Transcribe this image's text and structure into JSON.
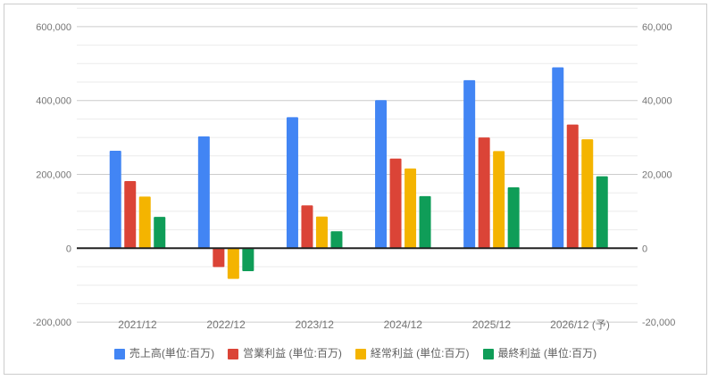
{
  "chart_data": {
    "type": "bar",
    "title": "",
    "categories": [
      "2021/12",
      "2022/12",
      "2023/12",
      "2024/12",
      "2025/12",
      "2026/12 (予)"
    ],
    "series": [
      {
        "name": "売上高(単位:百万)",
        "axis": "left",
        "color": "#4285f4",
        "values": [
          264000,
          303000,
          355000,
          401000,
          455000,
          490000
        ]
      },
      {
        "name": "営業利益 (単位:百万)",
        "axis": "right",
        "color": "#db4437",
        "values": [
          18200,
          -5100,
          11600,
          24300,
          30000,
          33500
        ]
      },
      {
        "name": "経常利益 (単位:百万)",
        "axis": "right",
        "color": "#f4b400",
        "values": [
          14000,
          -8300,
          8600,
          21600,
          26300,
          29500
        ]
      },
      {
        "name": "最終利益 (単位:百万)",
        "axis": "right",
        "color": "#0f9d58",
        "values": [
          8500,
          -6200,
          4600,
          14100,
          16500,
          19500
        ]
      }
    ],
    "left_axis": {
      "min": -200000,
      "max": 650000,
      "tick_values": [
        -200000,
        0,
        200000,
        400000,
        600000
      ],
      "tick_labels": [
        "-200,000",
        "0",
        "200,000",
        "400,000",
        "600,000"
      ],
      "minor_step": 50000
    },
    "right_axis": {
      "min": -20000,
      "max": 65000,
      "tick_values": [
        -20000,
        0,
        20000,
        40000,
        60000
      ],
      "tick_labels": [
        "-20,000",
        "0",
        "20,000",
        "40,000",
        "60,000"
      ]
    },
    "left_units_per_right_unit": 10,
    "grid": true,
    "legend_position": "bottom",
    "colors": {
      "background": "#ffffff",
      "panel_border": "#cccccc",
      "major_gridline": "#cccccc",
      "minor_gridline": "#ebebeb",
      "zero_line": "#222222",
      "axis_text": "#757575",
      "legend_text": "#616161"
    }
  }
}
